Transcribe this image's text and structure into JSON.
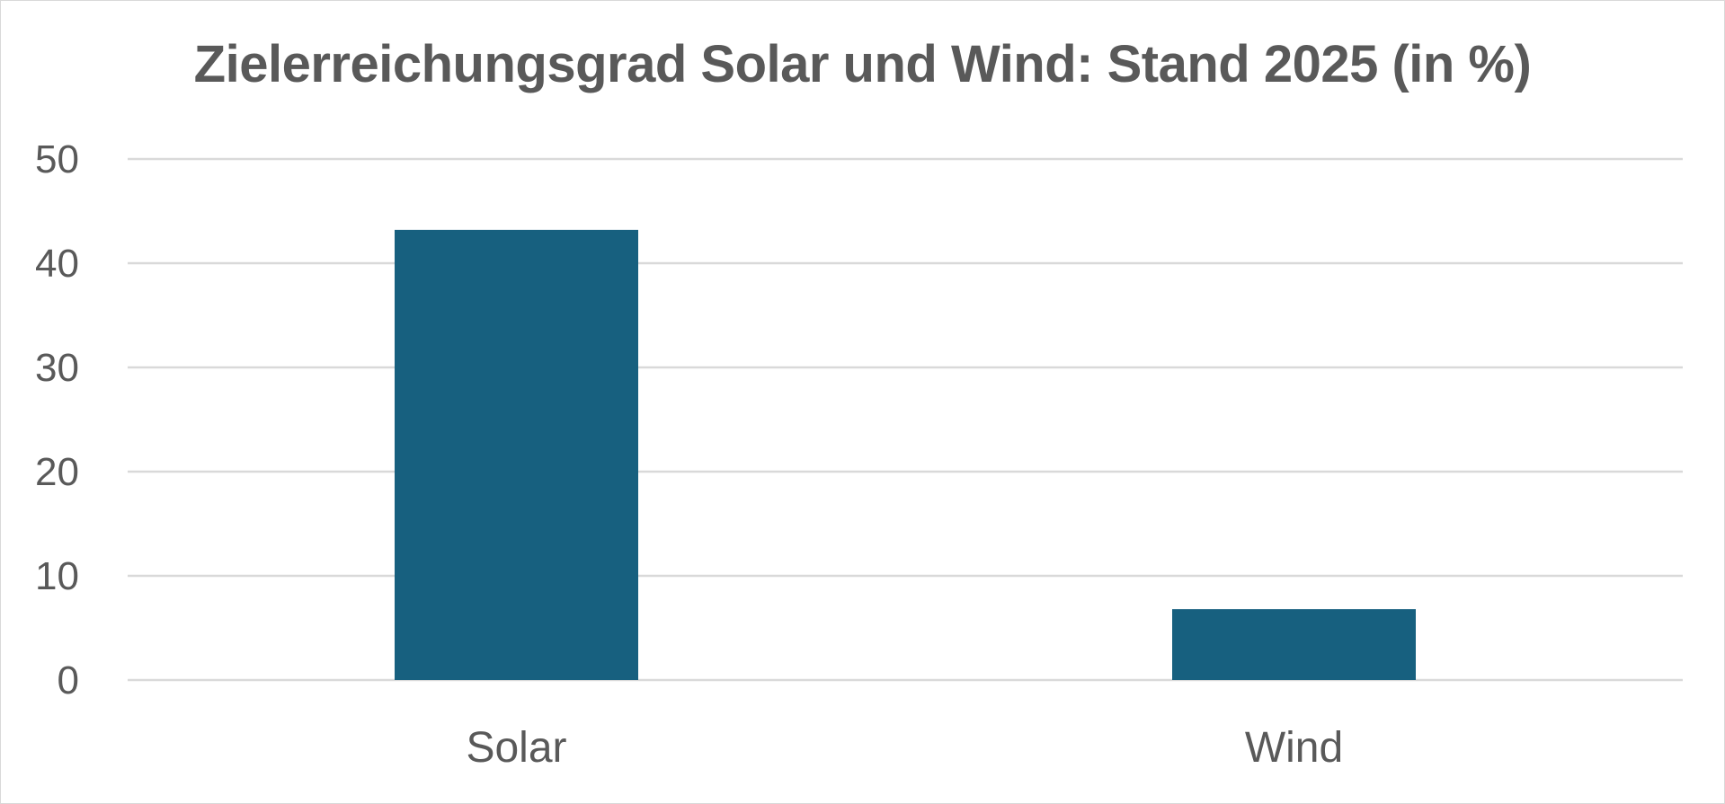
{
  "chart_data": {
    "type": "bar",
    "title": "Zielerreichungsgrad Solar und Wind: Stand 2025 (in %)",
    "xlabel": "",
    "ylabel": "",
    "categories": [
      "Solar",
      "Wind"
    ],
    "values": [
      43.2,
      6.8
    ],
    "ylim": [
      0,
      50
    ],
    "yticks": [
      "0",
      "10",
      "20",
      "30",
      "40",
      "50"
    ],
    "grid": true,
    "legend": "none",
    "bar_color": "#17607F",
    "grid_color": "#D9D9D9",
    "text_color": "#595959"
  }
}
